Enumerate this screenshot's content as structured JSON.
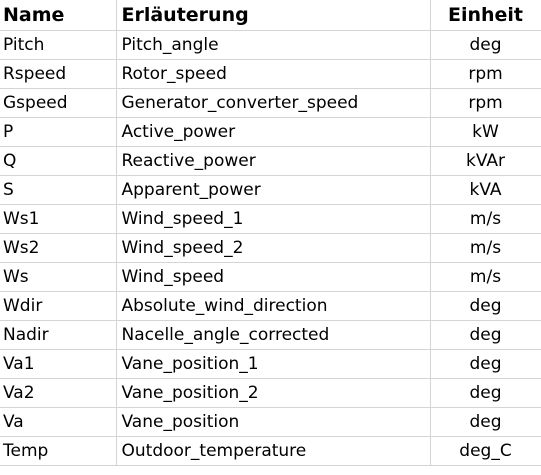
{
  "header": {
    "name": "Name",
    "description": "Erläuterung",
    "unit": "Einheit"
  },
  "rows": [
    {
      "name": "Pitch",
      "description": "Pitch_angle",
      "unit": "deg"
    },
    {
      "name": "Rspeed",
      "description": "Rotor_speed",
      "unit": "rpm"
    },
    {
      "name": "Gspeed",
      "description": "Generator_converter_speed",
      "unit": "rpm"
    },
    {
      "name": "P",
      "description": "Active_power",
      "unit": "kW"
    },
    {
      "name": "Q",
      "description": "Reactive_power",
      "unit": "kVAr"
    },
    {
      "name": "S",
      "description": "Apparent_power",
      "unit": "kVA"
    },
    {
      "name": "Ws1",
      "description": "Wind_speed_1",
      "unit": "m/s"
    },
    {
      "name": "Ws2",
      "description": "Wind_speed_2",
      "unit": "m/s"
    },
    {
      "name": "Ws",
      "description": "Wind_speed",
      "unit": "m/s"
    },
    {
      "name": "Wdir",
      "description": "Absolute_wind_direction",
      "unit": "deg"
    },
    {
      "name": "Nadir",
      "description": "Nacelle_angle_corrected",
      "unit": "deg"
    },
    {
      "name": "Va1",
      "description": "Vane_position_1",
      "unit": "deg"
    },
    {
      "name": "Va2",
      "description": "Vane_position_2",
      "unit": "deg"
    },
    {
      "name": "Va",
      "description": "Vane_position",
      "unit": "deg"
    },
    {
      "name": "Temp",
      "description": "Outdoor_temperature",
      "unit": "deg_C"
    }
  ]
}
